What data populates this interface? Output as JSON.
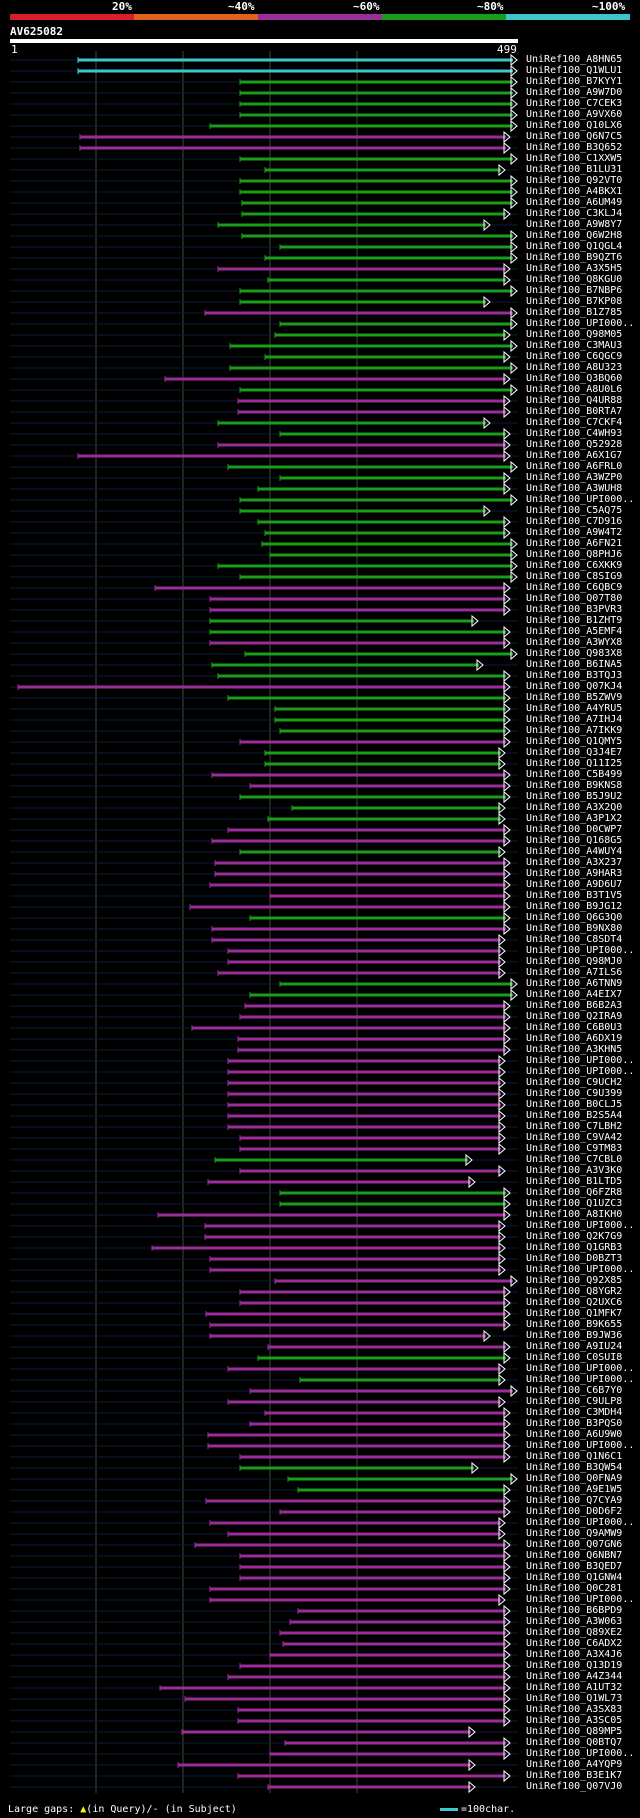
{
  "legend": {
    "labels": [
      "20%",
      "~40%",
      "~60%",
      "~80%",
      "~100%"
    ],
    "colors": [
      "#d61f2a",
      "#e0611b",
      "#9a2d9a",
      "#1a9d1a",
      "#3fc4cc"
    ]
  },
  "query": {
    "name": "AV625082",
    "start": "1",
    "end": "499"
  },
  "footer": {
    "gaps_label": "Large gaps:",
    "query_note": "(in Query)/- (in Subject)",
    "scale_label": "=100char.",
    "triangle": "▲"
  },
  "hits": [
    {
      "id": "UniRef100_A8HN65",
      "c": "cyan",
      "s": 78,
      "e": 517,
      "t": "end"
    },
    {
      "id": "UniRef100_Q1WLU1",
      "c": "cyan",
      "s": 78,
      "e": 517,
      "t": "end"
    },
    {
      "id": "UniRef100_B7KYY1",
      "c": "green",
      "s": 240,
      "e": 517,
      "t": "end"
    },
    {
      "id": "UniRef100_A9W7D0",
      "c": "green",
      "s": 240,
      "e": 517,
      "t": "end"
    },
    {
      "id": "UniRef100_C7CEK3",
      "c": "green",
      "s": 240,
      "e": 517,
      "t": "end"
    },
    {
      "id": "UniRef100_A9VX60",
      "c": "green",
      "s": 240,
      "e": 517,
      "t": "end"
    },
    {
      "id": "UniRef100_Q10LX6",
      "c": "green",
      "s": 210,
      "e": 517,
      "t": "end"
    },
    {
      "id": "UniRef100_Q6N7C5",
      "c": "magenta",
      "s": 80,
      "e": 510,
      "t": "end"
    },
    {
      "id": "UniRef100_B3Q652",
      "c": "magenta",
      "s": 80,
      "e": 510,
      "t": "end"
    },
    {
      "id": "UniRef100_C1XXW5",
      "c": "green",
      "s": 240,
      "e": 517,
      "t": "end"
    },
    {
      "id": "UniRef100_B1LU31",
      "c": "green",
      "s": 265,
      "e": 505,
      "t": "end"
    },
    {
      "id": "UniRef100_Q92VT0",
      "c": "green",
      "s": 240,
      "e": 517,
      "t": "end"
    },
    {
      "id": "UniRef100_A4BKX1",
      "c": "green",
      "s": 240,
      "e": 517,
      "t": "end"
    },
    {
      "id": "UniRef100_A6UM49",
      "c": "green",
      "s": 242,
      "e": 517,
      "t": "end"
    },
    {
      "id": "UniRef100_C3KLJ4",
      "c": "green",
      "s": 242,
      "e": 510,
      "t": "end"
    },
    {
      "id": "UniRef100_A9W8Y7",
      "c": "green",
      "s": 218,
      "e": 490,
      "t": "end"
    },
    {
      "id": "UniRef100_Q6W2H8",
      "c": "green",
      "s": 242,
      "e": 517,
      "t": "end"
    },
    {
      "id": "UniRef100_Q1QGL4",
      "c": "green",
      "s": 280,
      "e": 517,
      "t": "end"
    },
    {
      "id": "UniRef100_B9QZT6",
      "c": "green",
      "s": 265,
      "e": 517,
      "t": "end"
    },
    {
      "id": "UniRef100_A3X5H5",
      "c": "magenta",
      "s": 218,
      "e": 510,
      "t": "end"
    },
    {
      "id": "UniRef100_Q8KGU0",
      "c": "green",
      "s": 268,
      "e": 510,
      "t": "end"
    },
    {
      "id": "UniRef100_B7NBP6",
      "c": "green",
      "s": 240,
      "e": 517,
      "t": "end"
    },
    {
      "id": "UniRef100_B7KP08",
      "c": "green",
      "s": 240,
      "e": 490,
      "t": "end"
    },
    {
      "id": "UniRef100_B1Z785",
      "c": "magenta",
      "s": 205,
      "e": 517,
      "t": "end"
    },
    {
      "id": "UniRef100_UPI000..",
      "c": "green",
      "s": 280,
      "e": 517,
      "t": "end"
    },
    {
      "id": "UniRef100_Q98M05",
      "c": "green",
      "s": 275,
      "e": 510,
      "t": "end"
    },
    {
      "id": "UniRef100_C3MAU3",
      "c": "green",
      "s": 230,
      "e": 517,
      "t": "end"
    },
    {
      "id": "UniRef100_C6QGC9",
      "c": "green",
      "s": 265,
      "e": 510,
      "t": "end"
    },
    {
      "id": "UniRef100_A8U323",
      "c": "green",
      "s": 230,
      "e": 517,
      "t": "end"
    },
    {
      "id": "UniRef100_Q3BQ60",
      "c": "magenta",
      "s": 165,
      "e": 510,
      "t": "end"
    },
    {
      "id": "UniRef100_A8U0L6",
      "c": "green",
      "s": 240,
      "e": 517,
      "t": "end"
    },
    {
      "id": "UniRef100_Q4UR88",
      "c": "magenta",
      "s": 238,
      "e": 510,
      "t": "end"
    },
    {
      "id": "UniRef100_B0RTA7",
      "c": "magenta",
      "s": 238,
      "e": 510,
      "t": "end"
    },
    {
      "id": "UniRef100_C7CKF4",
      "c": "green",
      "s": 218,
      "e": 490,
      "t": "end"
    },
    {
      "id": "UniRef100_C4WH93",
      "c": "green",
      "s": 280,
      "e": 510,
      "t": "end"
    },
    {
      "id": "UniRef100_Q52928",
      "c": "magenta",
      "s": 218,
      "e": 510,
      "t": "end"
    },
    {
      "id": "UniRef100_A6X1G7",
      "c": "magenta",
      "s": 78,
      "e": 510,
      "t": "end"
    },
    {
      "id": "UniRef100_A6FRL0",
      "c": "green",
      "s": 228,
      "e": 517,
      "t": "end"
    },
    {
      "id": "UniRef100_A3WZP0",
      "c": "green",
      "s": 280,
      "e": 510,
      "t": "end"
    },
    {
      "id": "UniRef100_A3WUH8",
      "c": "green",
      "s": 258,
      "e": 510,
      "t": "end"
    },
    {
      "id": "UniRef100_UPI000..",
      "c": "green",
      "s": 240,
      "e": 517,
      "t": "end"
    },
    {
      "id": "UniRef100_C5AQ75",
      "c": "green",
      "s": 240,
      "e": 490,
      "t": "end"
    },
    {
      "id": "UniRef100_C7D916",
      "c": "green",
      "s": 258,
      "e": 510,
      "t": "end"
    },
    {
      "id": "UniRef100_A9W4T2",
      "c": "green",
      "s": 265,
      "e": 510,
      "t": "end"
    },
    {
      "id": "UniRef100_A6FN21",
      "c": "green",
      "s": 262,
      "e": 517,
      "t": "end"
    },
    {
      "id": "UniRef100_Q8PHJ6",
      "c": "green",
      "s": 270,
      "e": 517,
      "t": "end"
    },
    {
      "id": "UniRef100_C6XKK9",
      "c": "green",
      "s": 218,
      "e": 517,
      "t": "end"
    },
    {
      "id": "UniRef100_C8SIG9",
      "c": "green",
      "s": 240,
      "e": 517,
      "t": "end"
    },
    {
      "id": "UniRef100_C6QBC9",
      "c": "magenta",
      "s": 155,
      "e": 510,
      "t": "end"
    },
    {
      "id": "UniRef100_Q07T80",
      "c": "magenta",
      "s": 210,
      "e": 510,
      "t": "end"
    },
    {
      "id": "UniRef100_B3PVR3",
      "c": "magenta",
      "s": 210,
      "e": 510,
      "t": "end"
    },
    {
      "id": "UniRef100_B1ZHT9",
      "c": "green",
      "s": 210,
      "e": 478,
      "t": "end"
    },
    {
      "id": "UniRef100_A5EMF4",
      "c": "green",
      "s": 210,
      "e": 510,
      "t": "end"
    },
    {
      "id": "UniRef100_A3WYX8",
      "c": "magenta",
      "s": 210,
      "e": 510,
      "t": "end"
    },
    {
      "id": "UniRef100_Q983X8",
      "c": "green",
      "s": 245,
      "e": 517,
      "t": "end"
    },
    {
      "id": "UniRef100_B6INA5",
      "c": "green",
      "s": 212,
      "e": 483,
      "t": "end"
    },
    {
      "id": "UniRef100_B3TQJ3",
      "c": "green",
      "s": 218,
      "e": 510,
      "t": "end"
    },
    {
      "id": "UniRef100_Q07KJ4",
      "c": "magenta",
      "s": 18,
      "e": 510,
      "t": "end"
    },
    {
      "id": "UniRef100_B5ZWV9",
      "c": "green",
      "s": 228,
      "e": 510,
      "t": "end"
    },
    {
      "id": "UniRef100_A4YRU5",
      "c": "green",
      "s": 275,
      "e": 510,
      "t": "end"
    },
    {
      "id": "UniRef100_A7IHJ4",
      "c": "green",
      "s": 275,
      "e": 510,
      "t": "end"
    },
    {
      "id": "UniRef100_A7IKK9",
      "c": "green",
      "s": 280,
      "e": 510,
      "t": "end"
    },
    {
      "id": "UniRef100_Q1QMY5",
      "c": "magenta",
      "s": 240,
      "e": 510,
      "t": "end"
    },
    {
      "id": "UniRef100_Q3J4E7",
      "c": "green",
      "s": 265,
      "e": 505,
      "t": "end"
    },
    {
      "id": "UniRef100_Q11I25",
      "c": "green",
      "s": 265,
      "e": 505,
      "t": "end"
    },
    {
      "id": "UniRef100_C5B499",
      "c": "magenta",
      "s": 212,
      "e": 510,
      "t": "end"
    },
    {
      "id": "UniRef100_B9KNS8",
      "c": "magenta",
      "s": 250,
      "e": 510,
      "t": "end"
    },
    {
      "id": "UniRef100_B5J9U2",
      "c": "green",
      "s": 240,
      "e": 510,
      "t": "end"
    },
    {
      "id": "UniRef100_A3X2Q0",
      "c": "green",
      "s": 292,
      "e": 505,
      "t": "end"
    },
    {
      "id": "UniRef100_A3P1X2",
      "c": "green",
      "s": 268,
      "e": 505,
      "t": "end"
    },
    {
      "id": "UniRef100_D0CWP7",
      "c": "magenta",
      "s": 228,
      "e": 510,
      "t": "end"
    },
    {
      "id": "UniRef100_Q168G5",
      "c": "magenta",
      "s": 212,
      "e": 510,
      "t": "end"
    },
    {
      "id": "UniRef100_A4WUY4",
      "c": "green",
      "s": 240,
      "e": 505,
      "t": "end"
    },
    {
      "id": "UniRef100_A3X237",
      "c": "magenta",
      "s": 215,
      "e": 510,
      "t": "end"
    },
    {
      "id": "UniRef100_A9HAR3",
      "c": "magenta",
      "s": 215,
      "e": 510,
      "t": "end"
    },
    {
      "id": "UniRef100_A9D6U7",
      "c": "magenta",
      "s": 210,
      "e": 510,
      "t": "end"
    },
    {
      "id": "UniRef100_B3T1V5",
      "c": "magenta",
      "s": 270,
      "e": 510,
      "t": "end"
    },
    {
      "id": "UniRef100_B9JG12",
      "c": "magenta",
      "s": 190,
      "e": 510,
      "t": "end"
    },
    {
      "id": "UniRef100_Q6G3Q0",
      "c": "green",
      "s": 250,
      "e": 510,
      "t": "end"
    },
    {
      "id": "UniRef100_B9NX80",
      "c": "magenta",
      "s": 212,
      "e": 510,
      "t": "end"
    },
    {
      "id": "UniRef100_C8SDT4",
      "c": "magenta",
      "s": 212,
      "e": 505,
      "t": "end"
    },
    {
      "id": "UniRef100_UPI000..",
      "c": "magenta",
      "s": 228,
      "e": 505,
      "t": "end"
    },
    {
      "id": "UniRef100_Q98MJ0",
      "c": "magenta",
      "s": 228,
      "e": 505,
      "t": "end"
    },
    {
      "id": "UniRef100_A7ILS6",
      "c": "magenta",
      "s": 218,
      "e": 505,
      "t": "end"
    },
    {
      "id": "UniRef100_A6TNN9",
      "c": "green",
      "s": 280,
      "e": 517,
      "t": "end"
    },
    {
      "id": "UniRef100_A4EIX7",
      "c": "green",
      "s": 250,
      "e": 517,
      "t": "end"
    },
    {
      "id": "UniRef100_B6B2A3",
      "c": "magenta",
      "s": 245,
      "e": 510,
      "t": "end"
    },
    {
      "id": "UniRef100_Q2IRA9",
      "c": "magenta",
      "s": 240,
      "e": 510,
      "t": "end"
    },
    {
      "id": "UniRef100_C6B0U3",
      "c": "magenta",
      "s": 192,
      "e": 510,
      "t": "end"
    },
    {
      "id": "UniRef100_A6DX19",
      "c": "magenta",
      "s": 238,
      "e": 510,
      "t": "end"
    },
    {
      "id": "UniRef100_A3KHN5",
      "c": "magenta",
      "s": 238,
      "e": 510,
      "t": "end"
    },
    {
      "id": "UniRef100_UPI000..",
      "c": "magenta",
      "s": 228,
      "e": 505,
      "t": "end"
    },
    {
      "id": "UniRef100_UPI000..",
      "c": "magenta",
      "s": 228,
      "e": 505,
      "t": "end"
    },
    {
      "id": "UniRef100_C9UCH2",
      "c": "magenta",
      "s": 228,
      "e": 505,
      "t": "end"
    },
    {
      "id": "UniRef100_C9U399",
      "c": "magenta",
      "s": 228,
      "e": 505,
      "t": "end"
    },
    {
      "id": "UniRef100_B0CLJ5",
      "c": "magenta",
      "s": 228,
      "e": 505,
      "t": "end"
    },
    {
      "id": "UniRef100_B2S5A4",
      "c": "magenta",
      "s": 228,
      "e": 505,
      "t": "end"
    },
    {
      "id": "UniRef100_C7LBH2",
      "c": "magenta",
      "s": 228,
      "e": 505,
      "t": "end"
    },
    {
      "id": "UniRef100_C9VA42",
      "c": "magenta",
      "s": 240,
      "e": 505,
      "t": "end"
    },
    {
      "id": "UniRef100_C9TM83",
      "c": "magenta",
      "s": 240,
      "e": 505,
      "t": "end"
    },
    {
      "id": "UniRef100_C7CBL0",
      "c": "green",
      "s": 215,
      "e": 472,
      "t": "end"
    },
    {
      "id": "UniRef100_A3V3K0",
      "c": "magenta",
      "s": 240,
      "e": 505,
      "t": "end"
    },
    {
      "id": "UniRef100_B1LTD5",
      "c": "magenta",
      "s": 208,
      "e": 475,
      "t": "end"
    },
    {
      "id": "UniRef100_Q6FZR8",
      "c": "green",
      "s": 280,
      "e": 510,
      "t": "end"
    },
    {
      "id": "UniRef100_Q1UZC3",
      "c": "green",
      "s": 280,
      "e": 510,
      "t": "end"
    },
    {
      "id": "UniRef100_A8IKH0",
      "c": "magenta",
      "s": 158,
      "e": 510,
      "t": "end"
    },
    {
      "id": "UniRef100_UPI000..",
      "c": "magenta",
      "s": 205,
      "e": 505,
      "t": "end"
    },
    {
      "id": "UniRef100_Q2K7G9",
      "c": "magenta",
      "s": 205,
      "e": 505,
      "t": "end"
    },
    {
      "id": "UniRef100_Q1GRB3",
      "c": "magenta",
      "s": 152,
      "e": 505,
      "t": "end"
    },
    {
      "id": "UniRef100_D0BZT3",
      "c": "magenta",
      "s": 210,
      "e": 505,
      "t": "end"
    },
    {
      "id": "UniRef100_UPI000..",
      "c": "magenta",
      "s": 210,
      "e": 505,
      "t": "end"
    },
    {
      "id": "UniRef100_Q92X85",
      "c": "magenta",
      "s": 275,
      "e": 517,
      "t": "end"
    },
    {
      "id": "UniRef100_Q8YGR2",
      "c": "magenta",
      "s": 240,
      "e": 510,
      "t": "end"
    },
    {
      "id": "UniRef100_Q2UXC6",
      "c": "magenta",
      "s": 240,
      "e": 510,
      "t": "end"
    },
    {
      "id": "UniRef100_Q1MFK7",
      "c": "magenta",
      "s": 206,
      "e": 510,
      "t": "end"
    },
    {
      "id": "UniRef100_B9K655",
      "c": "magenta",
      "s": 210,
      "e": 510,
      "t": "end"
    },
    {
      "id": "UniRef100_B9JW36",
      "c": "magenta",
      "s": 210,
      "e": 490,
      "t": "end"
    },
    {
      "id": "UniRef100_A9IU24",
      "c": "magenta",
      "s": 268,
      "e": 510,
      "t": "end"
    },
    {
      "id": "UniRef100_C0SUI8",
      "c": "green",
      "s": 258,
      "e": 510,
      "t": "end"
    },
    {
      "id": "UniRef100_UPI000..",
      "c": "magenta",
      "s": 228,
      "e": 505,
      "t": "end"
    },
    {
      "id": "UniRef100_UPI000..",
      "c": "green",
      "s": 300,
      "e": 505,
      "t": "end"
    },
    {
      "id": "UniRef100_C6B7Y0",
      "c": "magenta",
      "s": 250,
      "e": 517,
      "t": "end"
    },
    {
      "id": "UniRef100_C9ULP8",
      "c": "magenta",
      "s": 228,
      "e": 505,
      "t": "end"
    },
    {
      "id": "UniRef100_C3MDH4",
      "c": "magenta",
      "s": 265,
      "e": 510,
      "t": "end"
    },
    {
      "id": "UniRef100_B3PQS0",
      "c": "magenta",
      "s": 250,
      "e": 510,
      "t": "end"
    },
    {
      "id": "UniRef100_A6U9W0",
      "c": "magenta",
      "s": 208,
      "e": 510,
      "t": "end"
    },
    {
      "id": "UniRef100_UPI000..",
      "c": "magenta",
      "s": 208,
      "e": 510,
      "t": "end"
    },
    {
      "id": "UniRef100_Q1N6C1",
      "c": "magenta",
      "s": 240,
      "e": 510,
      "t": "end"
    },
    {
      "id": "UniRef100_B3QW54",
      "c": "green",
      "s": 240,
      "e": 478,
      "t": "end"
    },
    {
      "id": "UniRef100_Q0FNA9",
      "c": "green",
      "s": 288,
      "e": 517,
      "t": "end"
    },
    {
      "id": "UniRef100_A9E1W5",
      "c": "green",
      "s": 298,
      "e": 510,
      "t": "end"
    },
    {
      "id": "UniRef100_Q7CYA9",
      "c": "magenta",
      "s": 206,
      "e": 510,
      "t": "end"
    },
    {
      "id": "UniRef100_D0D6F2",
      "c": "magenta",
      "s": 280,
      "e": 510,
      "t": "end"
    },
    {
      "id": "UniRef100_UPI000..",
      "c": "magenta",
      "s": 210,
      "e": 505,
      "t": "end"
    },
    {
      "id": "UniRef100_Q9AMW9",
      "c": "magenta",
      "s": 228,
      "e": 505,
      "t": "end"
    },
    {
      "id": "UniRef100_Q07GN6",
      "c": "magenta",
      "s": 195,
      "e": 510,
      "t": "end"
    },
    {
      "id": "UniRef100_Q6NBN7",
      "c": "magenta",
      "s": 240,
      "e": 510,
      "t": "end"
    },
    {
      "id": "UniRef100_B3QED7",
      "c": "magenta",
      "s": 240,
      "e": 510,
      "t": "end"
    },
    {
      "id": "UniRef100_Q1GNW4",
      "c": "magenta",
      "s": 240,
      "e": 510,
      "t": "end"
    },
    {
      "id": "UniRef100_Q0C281",
      "c": "magenta",
      "s": 210,
      "e": 510,
      "t": "end"
    },
    {
      "id": "UniRef100_UPI000..",
      "c": "magenta",
      "s": 210,
      "e": 505,
      "t": "end"
    },
    {
      "id": "UniRef100_B6BPD9",
      "c": "magenta",
      "s": 298,
      "e": 510,
      "t": "end"
    },
    {
      "id": "UniRef100_A3W063",
      "c": "magenta",
      "s": 290,
      "e": 510,
      "t": "end"
    },
    {
      "id": "UniRef100_Q89XE2",
      "c": "magenta",
      "s": 280,
      "e": 510,
      "t": "end"
    },
    {
      "id": "UniRef100_C6ADX2",
      "c": "magenta",
      "s": 283,
      "e": 510,
      "t": "end"
    },
    {
      "id": "UniRef100_A3X4J6",
      "c": "magenta",
      "s": 270,
      "e": 510,
      "t": "end"
    },
    {
      "id": "UniRef100_Q13D19",
      "c": "magenta",
      "s": 240,
      "e": 510,
      "t": "end"
    },
    {
      "id": "UniRef100_A4Z344",
      "c": "magenta",
      "s": 228,
      "e": 510,
      "t": "end"
    },
    {
      "id": "UniRef100_A1UT32",
      "c": "magenta",
      "s": 160,
      "e": 510,
      "t": "end"
    },
    {
      "id": "UniRef100_Q1WL73",
      "c": "magenta",
      "s": 185,
      "e": 510,
      "t": "end"
    },
    {
      "id": "UniRef100_A3SX83",
      "c": "magenta",
      "s": 238,
      "e": 510,
      "t": "end"
    },
    {
      "id": "UniRef100_A3SC05",
      "c": "magenta",
      "s": 238,
      "e": 510,
      "t": "end"
    },
    {
      "id": "UniRef100_Q89MP5",
      "c": "magenta",
      "s": 182,
      "e": 475,
      "t": "end"
    },
    {
      "id": "UniRef100_Q0BTQ7",
      "c": "magenta",
      "s": 285,
      "e": 510,
      "t": "end"
    },
    {
      "id": "UniRef100_UPI000..",
      "c": "magenta",
      "s": 270,
      "e": 510,
      "t": "end"
    },
    {
      "id": "UniRef100_A4YQP9",
      "c": "magenta",
      "s": 178,
      "e": 475,
      "t": "end"
    },
    {
      "id": "UniRef100_B3E1K7",
      "c": "magenta",
      "s": 238,
      "e": 510,
      "t": "end"
    },
    {
      "id": "UniRef100_Q07VJ0",
      "c": "magenta",
      "s": 268,
      "e": 475,
      "t": "end"
    }
  ]
}
